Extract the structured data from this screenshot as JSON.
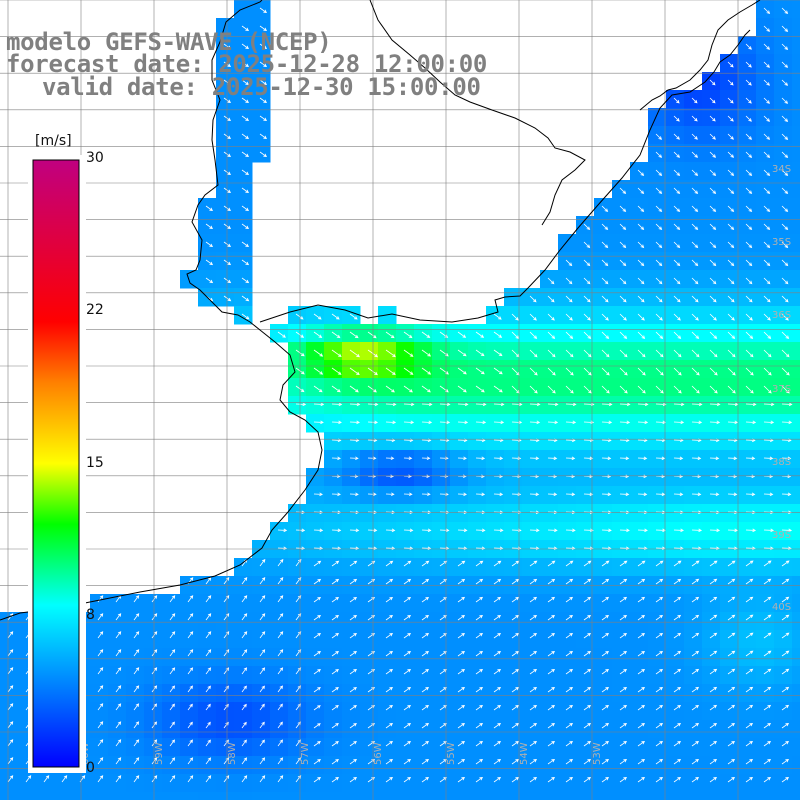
{
  "title": {
    "line1": "modelo GEFS-WAVE (NCEP)",
    "line2": "forecast date: 2025-12-28 12:00:00",
    "line3": "valid date: 2025-12-30 15:00:00"
  },
  "colorbar": {
    "unit": "[m/s]",
    "ticks": [
      "30",
      "22",
      "15",
      "8",
      "0"
    ],
    "tick_values": [
      30,
      22,
      15,
      8,
      0
    ],
    "range": [
      0,
      30
    ],
    "colors": [
      "#0000ff",
      "#00ffff",
      "#00ff00",
      "#ffff00",
      "#ff8000",
      "#ff0000",
      "#c00080"
    ]
  },
  "map": {
    "grid_latitude_labels": [
      "34S",
      "35S",
      "36S",
      "37S",
      "38S",
      "39S",
      "40S"
    ],
    "grid_longitude_labels": [
      "60W",
      "59W",
      "58W",
      "57W",
      "56W",
      "55W",
      "54W",
      "53W"
    ],
    "land_color": "#ffffff",
    "coast_color": "#000000",
    "grid_color": "#808080",
    "arrow_color": "#ffffff"
  }
}
